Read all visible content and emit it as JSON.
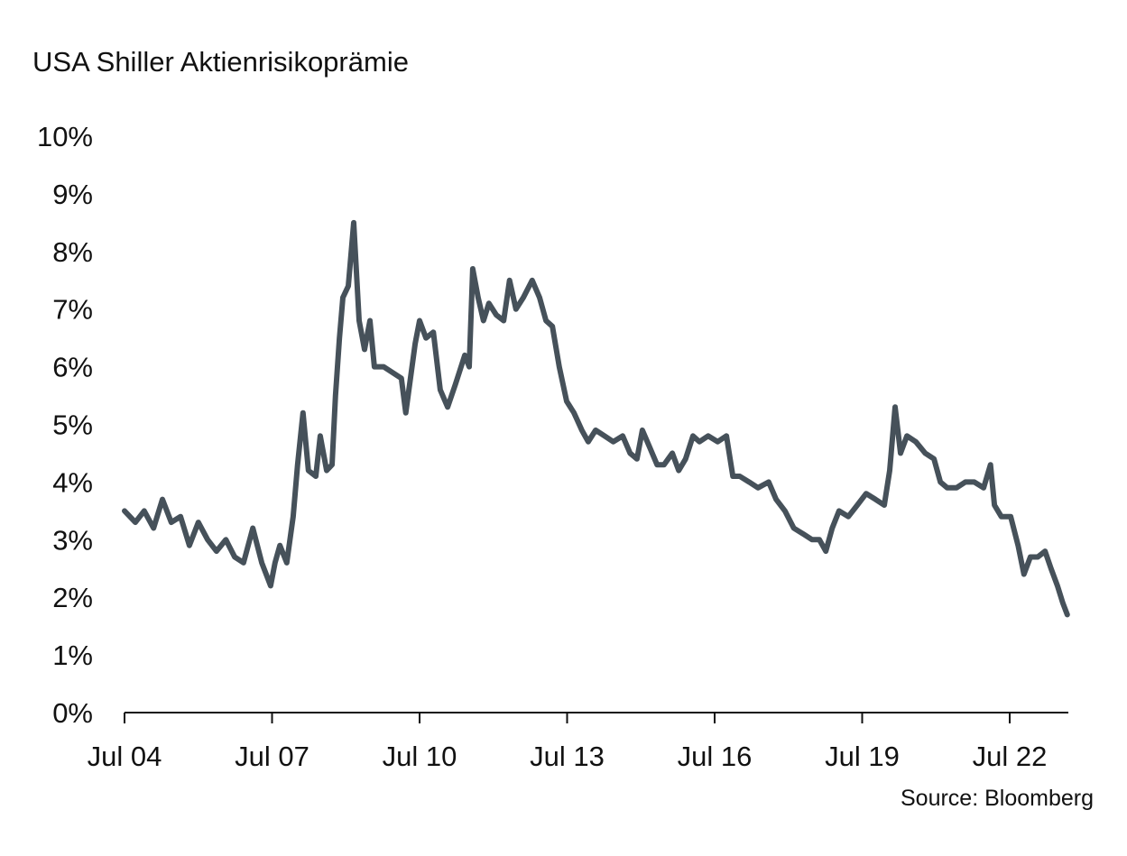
{
  "chart_data": {
    "type": "line",
    "title": "USA Shiller Aktienrisikoprämie",
    "source": "Source: Bloomberg",
    "xlabel": "",
    "ylabel": "",
    "ylim": [
      0,
      10
    ],
    "xlim": [
      2004.5,
      2023.67
    ],
    "grid": false,
    "y_ticks": [
      {
        "value": 0,
        "label": "0%"
      },
      {
        "value": 1,
        "label": "1%"
      },
      {
        "value": 2,
        "label": "2%"
      },
      {
        "value": 3,
        "label": "3%"
      },
      {
        "value": 4,
        "label": "4%"
      },
      {
        "value": 5,
        "label": "5%"
      },
      {
        "value": 6,
        "label": "6%"
      },
      {
        "value": 7,
        "label": "7%"
      },
      {
        "value": 8,
        "label": "8%"
      },
      {
        "value": 9,
        "label": "9%"
      },
      {
        "value": 10,
        "label": "10%"
      }
    ],
    "x_ticks": [
      {
        "value": 2004.5,
        "label": "Jul 04"
      },
      {
        "value": 2007.5,
        "label": "Jul 07"
      },
      {
        "value": 2010.5,
        "label": "Jul 10"
      },
      {
        "value": 2013.5,
        "label": "Jul 13"
      },
      {
        "value": 2016.5,
        "label": "Jul 16"
      },
      {
        "value": 2019.5,
        "label": "Jul 19"
      },
      {
        "value": 2022.5,
        "label": "Jul 22"
      }
    ],
    "series": [
      {
        "name": "USA Shiller Aktienrisikoprämie",
        "color": "#46515a",
        "x": [
          2004.5,
          2004.72,
          2004.9,
          2005.09,
          2005.27,
          2005.45,
          2005.64,
          2005.82,
          2006.0,
          2006.19,
          2006.37,
          2006.56,
          2006.74,
          2006.92,
          2007.11,
          2007.29,
          2007.47,
          2007.56,
          2007.66,
          2007.8,
          2007.93,
          2008.02,
          2008.13,
          2008.24,
          2008.39,
          2008.48,
          2008.61,
          2008.72,
          2008.79,
          2008.87,
          2008.94,
          2009.05,
          2009.16,
          2009.27,
          2009.38,
          2009.49,
          2009.58,
          2009.77,
          2009.95,
          2010.13,
          2010.22,
          2010.41,
          2010.5,
          2010.63,
          2010.78,
          2010.92,
          2011.07,
          2011.23,
          2011.42,
          2011.51,
          2011.58,
          2011.69,
          2011.8,
          2011.91,
          2012.06,
          2012.21,
          2012.33,
          2012.46,
          2012.61,
          2012.79,
          2012.94,
          2013.07,
          2013.2,
          2013.34,
          2013.49,
          2013.64,
          2013.8,
          2013.93,
          2014.08,
          2014.26,
          2014.44,
          2014.63,
          2014.78,
          2014.92,
          2015.03,
          2015.18,
          2015.33,
          2015.47,
          2015.64,
          2015.77,
          2015.91,
          2016.06,
          2016.19,
          2016.37,
          2016.56,
          2016.74,
          2016.87,
          2017.01,
          2017.2,
          2017.38,
          2017.6,
          2017.75,
          2017.93,
          2018.11,
          2018.3,
          2018.48,
          2018.63,
          2018.76,
          2018.89,
          2019.03,
          2019.22,
          2019.4,
          2019.58,
          2019.77,
          2019.95,
          2020.06,
          2020.17,
          2020.28,
          2020.41,
          2020.59,
          2020.78,
          2020.96,
          2021.09,
          2021.23,
          2021.42,
          2021.6,
          2021.78,
          2021.97,
          2022.11,
          2022.19,
          2022.33,
          2022.52,
          2022.67,
          2022.79,
          2022.92,
          2023.07,
          2023.22,
          2023.34,
          2023.47,
          2023.58,
          2023.67
        ],
        "values": [
          3.5,
          3.3,
          3.5,
          3.2,
          3.7,
          3.3,
          3.4,
          2.9,
          3.3,
          3.0,
          2.8,
          3.0,
          2.7,
          2.6,
          3.2,
          2.6,
          2.2,
          2.6,
          2.9,
          2.6,
          3.4,
          4.3,
          5.2,
          4.2,
          4.1,
          4.8,
          4.2,
          4.3,
          5.5,
          6.5,
          7.2,
          7.4,
          8.5,
          6.8,
          6.3,
          6.8,
          6.0,
          6.0,
          5.9,
          5.8,
          5.2,
          6.4,
          6.8,
          6.5,
          6.6,
          5.6,
          5.3,
          5.7,
          6.2,
          6.0,
          7.7,
          7.2,
          6.8,
          7.1,
          6.9,
          6.8,
          7.5,
          7.0,
          7.2,
          7.5,
          7.2,
          6.8,
          6.7,
          6.0,
          5.4,
          5.2,
          4.9,
          4.7,
          4.9,
          4.8,
          4.7,
          4.8,
          4.5,
          4.4,
          4.9,
          4.6,
          4.3,
          4.3,
          4.5,
          4.2,
          4.4,
          4.8,
          4.7,
          4.8,
          4.7,
          4.8,
          4.1,
          4.1,
          4.0,
          3.9,
          4.0,
          3.7,
          3.5,
          3.2,
          3.1,
          3.0,
          3.0,
          2.8,
          3.2,
          3.5,
          3.4,
          3.6,
          3.8,
          3.7,
          3.6,
          4.2,
          5.3,
          4.5,
          4.8,
          4.7,
          4.5,
          4.4,
          4.0,
          3.9,
          3.9,
          4.0,
          4.0,
          3.9,
          4.3,
          3.6,
          3.4,
          3.4,
          2.9,
          2.4,
          2.7,
          2.7,
          2.8,
          2.5,
          2.2,
          1.9,
          1.7
        ]
      }
    ]
  }
}
